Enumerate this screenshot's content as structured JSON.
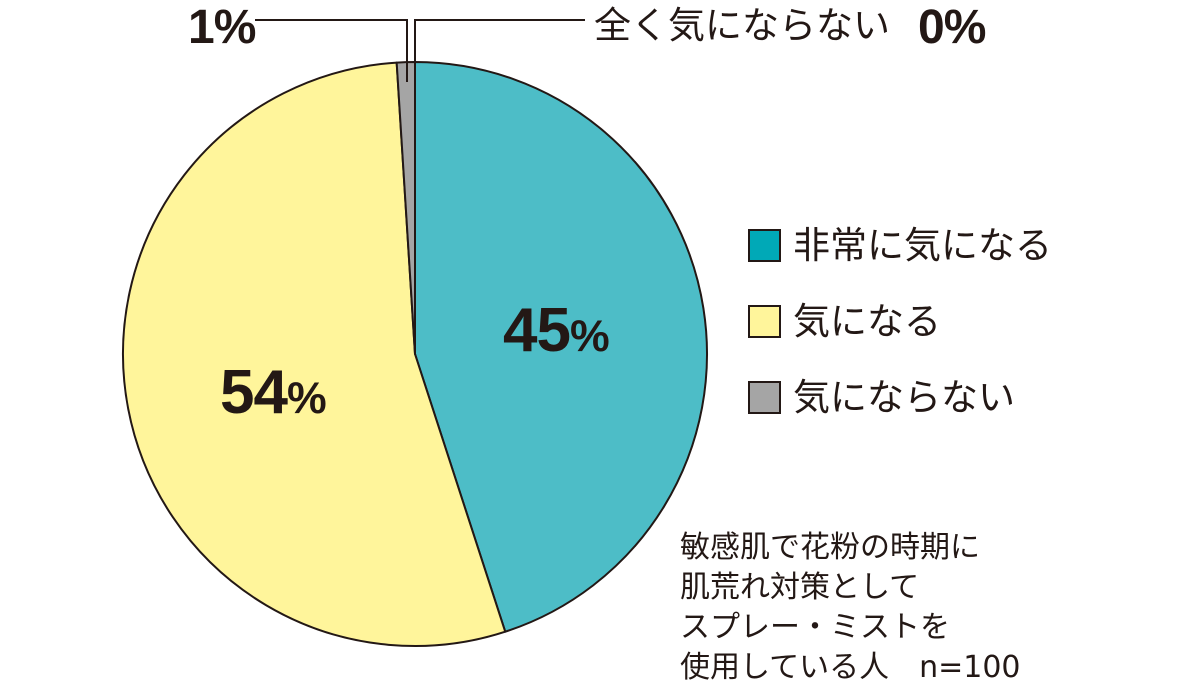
{
  "chart_data": {
    "type": "pie",
    "title": "",
    "categories": [
      "非常に気になる",
      "気になる",
      "気にならない",
      "全く気にならない"
    ],
    "values": [
      45,
      54,
      1,
      0
    ],
    "colors": [
      "#4dbdc7",
      "#fff59b",
      "#a5a5a5",
      "#ffffff"
    ],
    "value_labels": [
      "45%",
      "54%",
      "1%",
      "0%"
    ],
    "start_angle_deg": 0,
    "direction": "clockwise",
    "legend_position": "right",
    "legend": [
      "非常に気になる",
      "気になる",
      "気にならない"
    ],
    "annotations": [
      "全く気にならない 0%",
      "1%"
    ],
    "note": "敏感肌で花粉の時期に肌荒れ対策としてスプレー・ミストを使用している人 n=100",
    "sample_size": 100
  },
  "slices": {
    "very_concerned": {
      "number": "45",
      "unit": "%",
      "color": "#4dbdc7"
    },
    "concerned": {
      "number": "54",
      "unit": "%",
      "color": "#fff59b"
    },
    "not_concerned": {
      "number": "1",
      "unit": "%",
      "color": "#a5a5a5"
    },
    "not_at_all": {
      "label": "全く気にならない",
      "number": "0",
      "unit": "%"
    }
  },
  "legend": {
    "items": [
      {
        "label": "非常に気になる",
        "color": "#00a9b7"
      },
      {
        "label": "気になる",
        "color": "#fff59b"
      },
      {
        "label": "気にならない",
        "color": "#a5a5a5"
      }
    ]
  },
  "note": {
    "lines": [
      "敏感肌で花粉の時期に",
      "肌荒れ対策として",
      "スプレー・ミストを",
      "使用している人"
    ],
    "sample": "n=100"
  }
}
